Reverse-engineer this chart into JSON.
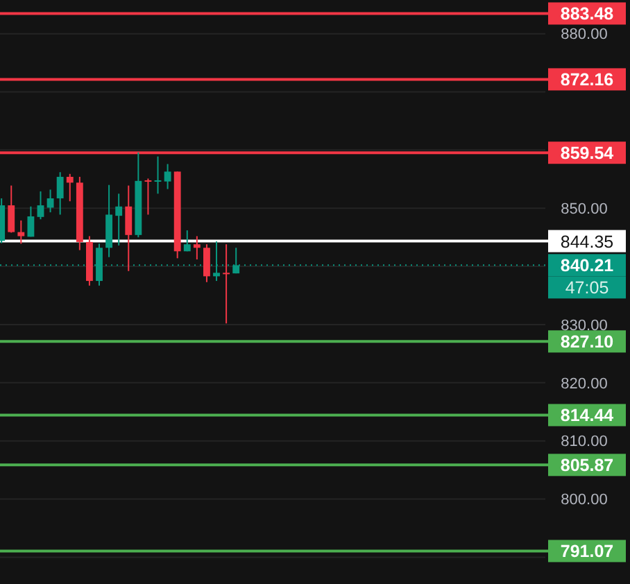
{
  "chart_data": {
    "type": "candlestick",
    "categories": [
      null,
      null,
      null,
      null,
      null,
      null,
      null,
      null,
      null,
      null,
      null,
      null,
      null,
      null,
      null,
      null,
      null,
      null,
      null,
      null,
      null,
      null,
      null,
      null,
      null,
      null,
      null,
      null,
      null,
      null,
      null,
      null,
      null,
      null,
      null,
      null,
      null,
      null,
      null,
      null,
      null,
      null,
      null,
      null,
      null,
      null,
      null,
      null,
      null,
      null,
      null,
      null,
      null,
      null,
      null,
      null
    ],
    "ohlc": [
      [
        844.4,
        851.7,
        844.0,
        850.5
      ],
      [
        850.5,
        853.9,
        845.8,
        845.9
      ],
      [
        845.9,
        847.9,
        843.9,
        845.2
      ],
      [
        845.1,
        850.3,
        845.1,
        848.6
      ],
      [
        848.5,
        852.9,
        848.1,
        850.5
      ],
      [
        850.1,
        853.2,
        849.3,
        851.7
      ],
      [
        851.7,
        856.2,
        848.9,
        855.4
      ],
      [
        855.4,
        855.9,
        851.2,
        854.4
      ],
      [
        854.4,
        855.4,
        842.8,
        844.2
      ],
      [
        844.2,
        845.2,
        836.7,
        837.5
      ],
      [
        837.5,
        843.9,
        836.7,
        843.2
      ],
      [
        843.2,
        854.0,
        841.6,
        848.9
      ],
      [
        848.7,
        852.5,
        843.6,
        850.3
      ],
      [
        850.3,
        853.9,
        839.2,
        845.4
      ],
      [
        845.4,
        859.6,
        845.0,
        854.7
      ],
      [
        854.8,
        855.1,
        848.9,
        854.6
      ],
      [
        854.6,
        858.9,
        852.5,
        854.8
      ],
      [
        854.6,
        857.6,
        853.3,
        856.3
      ],
      [
        856.3,
        856.3,
        841.4,
        842.6
      ],
      [
        842.6,
        846.2,
        842.6,
        843.8
      ],
      [
        843.8,
        845.2,
        841.2,
        843.2
      ],
      [
        843.2,
        843.8,
        837.3,
        838.3
      ],
      [
        838.3,
        844.3,
        837.5,
        838.9
      ],
      [
        838.9,
        843.8,
        830.2,
        838.8
      ],
      [
        838.8,
        843.2,
        838.8,
        840.2
      ],
      null,
      null,
      null,
      null,
      null,
      null,
      null,
      null,
      null,
      null,
      null,
      null,
      null,
      null,
      null,
      null,
      null,
      null,
      null,
      null,
      null,
      null,
      null,
      null,
      null,
      null,
      null,
      null,
      null,
      null,
      null
    ],
    "colors": [
      "#089981",
      "#f23645",
      "#f23645",
      "#089981",
      "#089981",
      "#089981",
      "#089981",
      "#f23645",
      "#f23645",
      "#f23645",
      "#089981",
      "#089981",
      "#089981",
      "#f23645",
      "#089981",
      "#f23645",
      "#089981",
      "#089981",
      "#f23645",
      "#089981",
      "#f23645",
      "#f23645",
      "#089981",
      "#f23645",
      "#089981",
      null,
      null,
      null,
      null,
      null,
      null,
      null,
      null,
      null,
      null,
      null,
      null,
      null,
      null,
      null,
      null,
      null,
      null,
      null,
      null,
      null,
      null,
      null,
      null,
      null,
      null,
      null,
      null,
      null,
      null,
      null
    ],
    "ylim": [
      785.4,
      885.8
    ],
    "yticks": [
      {
        "value": 880,
        "label": "880.00"
      },
      {
        "value": 870,
        "label": null
      },
      {
        "value": 860,
        "label": null
      },
      {
        "value": 850,
        "label": "850.00"
      },
      {
        "value": 840,
        "label": null
      },
      {
        "value": 830,
        "label": "830.00"
      },
      {
        "value": 820,
        "label": "820.00"
      },
      {
        "value": 810,
        "label": "810.00"
      },
      {
        "value": 800,
        "label": "800.00"
      },
      {
        "value": 790,
        "label": null
      }
    ],
    "tick_labels": "y",
    "grid": "y",
    "ref_lines": [
      {
        "axis": "y",
        "value": 883.48,
        "label": "883.48",
        "color": "#f23645"
      },
      {
        "axis": "y",
        "value": 872.16,
        "label": "872.16",
        "color": "#f23645"
      },
      {
        "axis": "y",
        "value": 859.54,
        "label": "859.54",
        "color": "#f23645"
      },
      {
        "axis": "y",
        "value": 844.35,
        "label": "844.35",
        "color": "#ffffff"
      },
      {
        "axis": "y",
        "value": 840.21,
        "label": "840.21",
        "color": "#089981",
        "line_style": "dotted"
      },
      {
        "axis": "y",
        "value": 827.1,
        "label": "827.10",
        "color": "#4caf50"
      },
      {
        "axis": "y",
        "value": 814.44,
        "label": "814.44",
        "color": "#4caf50"
      },
      {
        "axis": "y",
        "value": 805.87,
        "label": "805.87",
        "color": "#4caf50"
      },
      {
        "axis": "y",
        "value": 791.07,
        "label": "791.07",
        "color": "#4caf50"
      }
    ],
    "annotations": [
      "47:05"
    ]
  }
}
